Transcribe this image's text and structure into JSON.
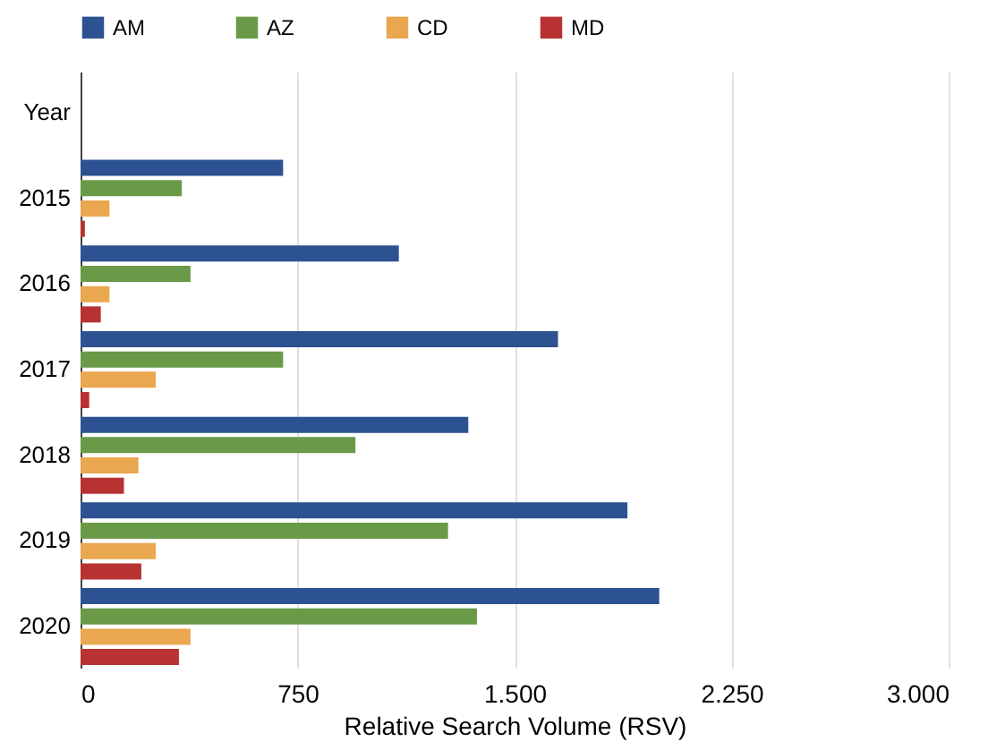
{
  "chart_data": {
    "type": "bar",
    "orientation": "horizontal",
    "xlabel": "Relative Search Volume (RSV)",
    "categories": [
      "Year",
      "2015",
      "2016",
      "2017",
      "2018",
      "2019",
      "2020"
    ],
    "series": [
      {
        "name": "AM",
        "color": "#2d5291",
        "values": [
          null,
          700,
          1100,
          1650,
          1340,
          1890,
          2000
        ]
      },
      {
        "name": "AZ",
        "color": "#6a9a48",
        "values": [
          null,
          350,
          380,
          700,
          950,
          1270,
          1370
        ]
      },
      {
        "name": "CD",
        "color": "#e9a74f",
        "values": [
          null,
          100,
          100,
          260,
          200,
          260,
          380
        ]
      },
      {
        "name": "MD",
        "color": "#b83232",
        "values": [
          null,
          15,
          70,
          30,
          150,
          210,
          340
        ]
      }
    ],
    "xlim": [
      0,
      3000
    ],
    "xticks": [
      0,
      750,
      {
        "value": 1500,
        "label": "1.500"
      },
      {
        "value": 2250,
        "label": "2.250"
      },
      {
        "value": 3000,
        "label": "3.000"
      }
    ],
    "grid": "x",
    "legend": "top"
  }
}
